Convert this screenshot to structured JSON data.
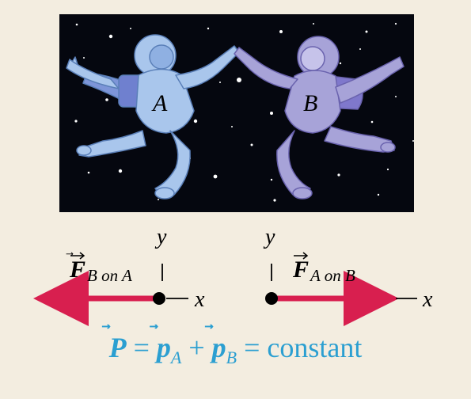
{
  "astronauts": {
    "a_label": "A",
    "b_label": "B"
  },
  "force_b_on_a": {
    "symbol": "F",
    "subscript": "B on A",
    "y_axis": "y",
    "x_axis": "x",
    "direction": "left"
  },
  "force_a_on_b": {
    "symbol": "F",
    "subscript": "A on B",
    "y_axis": "y",
    "x_axis": "x",
    "direction": "right"
  },
  "equation": {
    "P": "P",
    "pA": "p",
    "pA_sub": "A",
    "pB": "p",
    "pB_sub": "B",
    "equals1": "=",
    "plus": "+",
    "equals2": "=",
    "constant": "constant"
  },
  "colors": {
    "background": "#f3ede0",
    "space": "#05070f",
    "astronaut_a": "#a9c6ec",
    "astronaut_b": "#a7a3d8",
    "force_arrow": "#d81f4f",
    "equation": "#2b9fd1"
  }
}
